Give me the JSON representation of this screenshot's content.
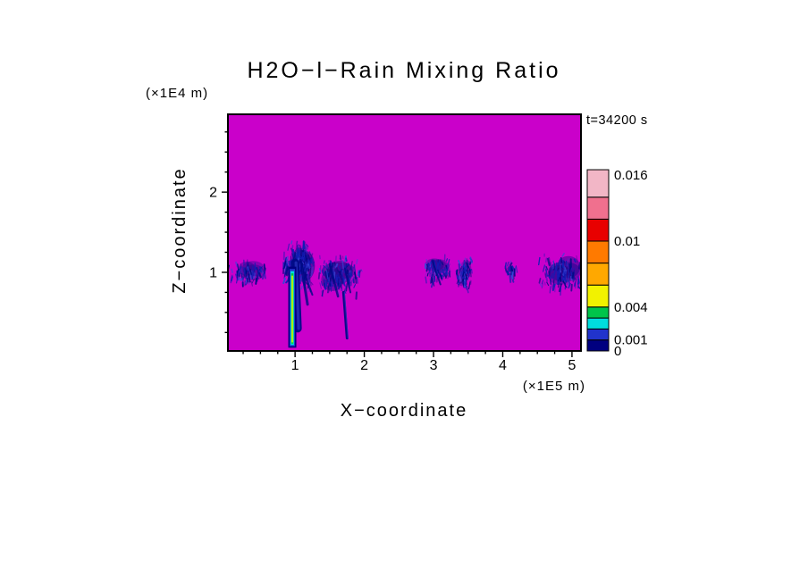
{
  "page": {
    "background": "#ffffff"
  },
  "chart_data": {
    "type": "heatmap",
    "title": "H2O−l−Rain Mixing Ratio",
    "time_label": "t=34200 s",
    "xlabel": "X−coordinate",
    "ylabel": "Z−coordinate",
    "x_units": "(×1E5 m)",
    "y_units": "(×1E4 m)",
    "xlim": [
      0.03,
      5.13
    ],
    "zlim": [
      0.02,
      2.97
    ],
    "x_ticks": [
      {
        "value": 1,
        "label": "1"
      },
      {
        "value": 2,
        "label": "2"
      },
      {
        "value": 3,
        "label": "3"
      },
      {
        "value": 4,
        "label": "4"
      },
      {
        "value": 5,
        "label": "5"
      }
    ],
    "z_ticks": [
      {
        "value": 1,
        "label": "1"
      },
      {
        "value": 2,
        "label": "2"
      }
    ],
    "x_minor_step": 0.25,
    "z_minor_step": 0.25,
    "background_value_color": "#CA00CA",
    "rain_color_dark": "#000A86",
    "rain_color_mid": "#141CB4",
    "rain_color_light": "#3947D8",
    "colorbar": {
      "segments": [
        {
          "from": 0,
          "to": 0.001,
          "color": "#000080"
        },
        {
          "from": 0.001,
          "to": 0.002,
          "color": "#2133CC"
        },
        {
          "from": 0.002,
          "to": 0.003,
          "color": "#00DEDE"
        },
        {
          "from": 0.003,
          "to": 0.004,
          "color": "#00C44A"
        },
        {
          "from": 0.004,
          "to": 0.006,
          "color": "#F2F200"
        },
        {
          "from": 0.006,
          "to": 0.008,
          "color": "#FFA800"
        },
        {
          "from": 0.008,
          "to": 0.01,
          "color": "#FF7A00"
        },
        {
          "from": 0.01,
          "to": 0.012,
          "color": "#E80000"
        },
        {
          "from": 0.012,
          "to": 0.014,
          "color": "#F0708E"
        },
        {
          "from": 0.014,
          "to": 0.0165,
          "color": "#F2B6C6"
        }
      ],
      "tick_labels": [
        {
          "value": 0.016,
          "label": "0.016"
        },
        {
          "value": 0.01,
          "label": "0.01"
        },
        {
          "value": 0.004,
          "label": "0.004"
        },
        {
          "value": 0.001,
          "label": "0.001"
        },
        {
          "value": 0,
          "label": "0"
        }
      ]
    },
    "features": [
      {
        "name": "rain-cell-1",
        "x": 0.3,
        "z": 1.03,
        "rx": 0.25,
        "rz": 0.12,
        "intensity": "light"
      },
      {
        "name": "rain-cell-2-main-plume",
        "x": 1.05,
        "z": 1.08,
        "rx": 0.2,
        "rz": 0.25,
        "intensity": "strong",
        "shaft": {
          "x": 1.0,
          "z_top": 1.12,
          "z_bottom": 0.3,
          "w": 9,
          "dx": 3
        },
        "streaks": [
          {
            "x1": 1.08,
            "z1": 1.15,
            "x2": 1.18,
            "z2": 0.6,
            "w": 3
          },
          {
            "x1": 1.13,
            "z1": 1.0,
            "x2": 1.25,
            "z2": 0.72,
            "w": 2
          }
        ],
        "core": {
          "x": 0.96,
          "z_top": 1.07,
          "z_bottom": 0.06,
          "layers": [
            {
              "color": "#000080",
              "w": 9
            },
            {
              "color": "#2133CC",
              "w": 6
            },
            {
              "color": "#00DEDE",
              "w": 4
            },
            {
              "color": "#00C44A",
              "w": 2.6
            },
            {
              "color": "#F8F800",
              "w": 1.4
            }
          ]
        }
      },
      {
        "name": "rain-cell-3",
        "x": 1.62,
        "z": 0.98,
        "rx": 0.3,
        "rz": 0.2,
        "intensity": "medium",
        "shaft": {
          "x": 1.7,
          "z_top": 0.75,
          "z_bottom": 0.18,
          "w": 3,
          "dx": 4
        },
        "streaks": [
          {
            "x1": 1.5,
            "z1": 1.1,
            "x2": 1.62,
            "z2": 0.7,
            "w": 2.5
          },
          {
            "x1": 1.72,
            "z1": 1.05,
            "x2": 1.8,
            "z2": 0.75,
            "w": 2
          }
        ]
      },
      {
        "name": "rain-cell-4",
        "x": 3.07,
        "z": 1.05,
        "rx": 0.18,
        "rz": 0.14,
        "intensity": "light",
        "streaks": [
          {
            "x1": 2.98,
            "z1": 1.15,
            "x2": 3.1,
            "z2": 0.85,
            "w": 2
          }
        ]
      },
      {
        "name": "rain-cell-5",
        "x": 3.45,
        "z": 1.0,
        "rx": 0.1,
        "rz": 0.17,
        "intensity": "light"
      },
      {
        "name": "rain-cell-6",
        "x": 4.12,
        "z": 1.05,
        "rx": 0.08,
        "rz": 0.08,
        "intensity": "faint"
      },
      {
        "name": "rain-cell-7",
        "x": 4.88,
        "z": 1.0,
        "rx": 0.3,
        "rz": 0.19,
        "intensity": "medium"
      }
    ]
  }
}
